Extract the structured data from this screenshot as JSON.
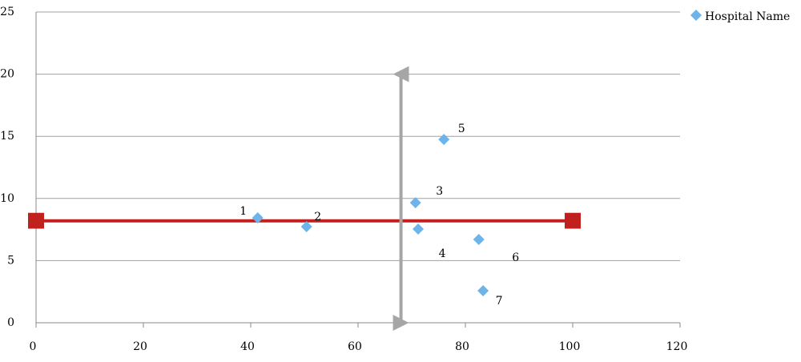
{
  "chart_data": {
    "type": "scatter",
    "series": [
      {
        "name": "Hospital Name",
        "color": "#6cb4ea",
        "x": [
          41.3,
          50.4,
          70.7,
          71.2,
          76.0,
          82.5,
          83.3
        ],
        "values": [
          8.44,
          7.73,
          9.66,
          7.54,
          14.75,
          6.7,
          2.58
        ],
        "point_labels": [
          "1",
          "2",
          "3",
          "4",
          "5",
          "6",
          "7"
        ]
      }
    ],
    "reference_lines": [
      {
        "x": [
          0,
          100
        ],
        "values": [
          8.2,
          8.2
        ],
        "color": "#c0201e"
      },
      {
        "x": [
          68,
          68
        ],
        "values": [
          0,
          20
        ],
        "color": "#a6a6a6"
      }
    ],
    "xlim": [
      0,
      120
    ],
    "xticks": [
      0,
      20,
      40,
      60,
      80,
      100,
      120
    ],
    "ylim": [
      0,
      25
    ],
    "yticks": [
      0,
      5,
      10,
      15,
      20,
      25
    ],
    "grid": true,
    "legend": "top-right"
  }
}
